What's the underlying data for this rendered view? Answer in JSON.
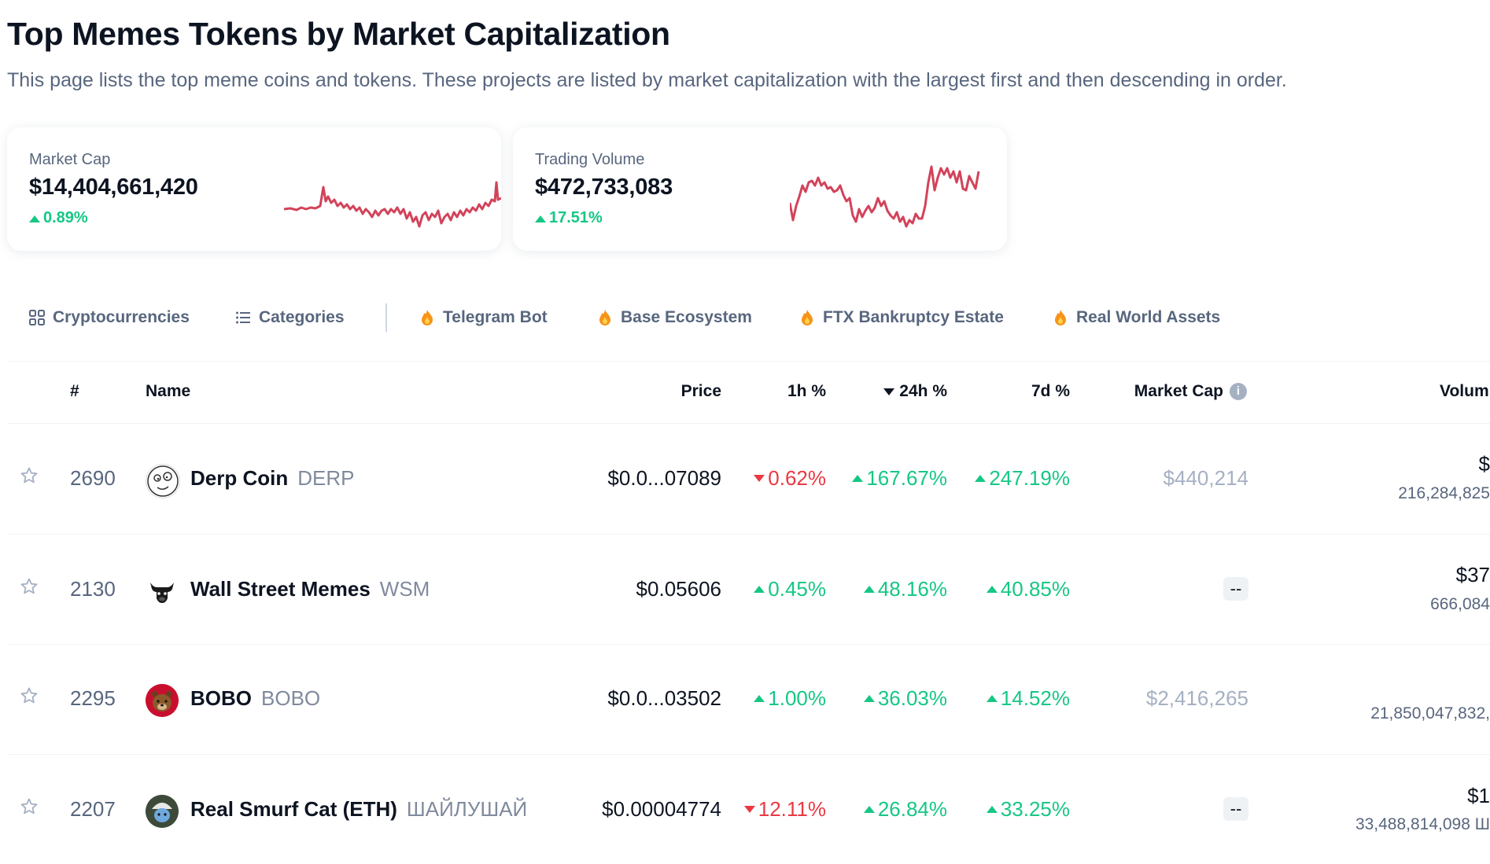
{
  "page": {
    "title": "Top Memes Tokens by Market Capitalization",
    "subtitle": "This page lists the top meme coins and tokens. These projects are listed by market capitalization with the largest first and then descending in order."
  },
  "cards": [
    {
      "label": "Market Cap",
      "value": "$14,404,661,420",
      "change": "0.89%",
      "direction": "up",
      "spark_color": "#d2435a"
    },
    {
      "label": "Trading Volume",
      "value": "$472,733,083",
      "change": "17.51%",
      "direction": "up",
      "spark_color": "#d2435a"
    }
  ],
  "tabs": [
    {
      "label": "Cryptocurrencies",
      "icon": "grid-icon"
    },
    {
      "label": "Categories",
      "icon": "list-icon"
    },
    {
      "label": "Telegram Bot",
      "icon": "fire-icon"
    },
    {
      "label": "Base Ecosystem",
      "icon": "fire-icon"
    },
    {
      "label": "FTX Bankruptcy Estate",
      "icon": "fire-icon"
    },
    {
      "label": "Real World Assets",
      "icon": "fire-icon"
    }
  ],
  "table": {
    "headers": {
      "rank": "#",
      "name": "Name",
      "price": "Price",
      "h1": "1h %",
      "h24": "24h %",
      "d7": "7d %",
      "mcap": "Market Cap",
      "volume": "Volum"
    },
    "rows": [
      {
        "rank": "2690",
        "name": "Derp Coin",
        "symbol": "DERP",
        "price": "$0.0...07089",
        "h1": "0.62%",
        "h1_dir": "down",
        "h24": "167.67%",
        "h24_dir": "up",
        "d7": "247.19%",
        "d7_dir": "up",
        "mcap": "$440,214",
        "vol1": "$",
        "vol2": "216,284,825"
      },
      {
        "rank": "2130",
        "name": "Wall Street Memes",
        "symbol": "WSM",
        "price": "$0.05606",
        "h1": "0.45%",
        "h1_dir": "up",
        "h24": "48.16%",
        "h24_dir": "up",
        "d7": "40.85%",
        "d7_dir": "up",
        "mcap": "--",
        "vol1": "$37",
        "vol2": "666,084"
      },
      {
        "rank": "2295",
        "name": "BOBO",
        "symbol": "BOBO",
        "price": "$0.0...03502",
        "h1": "1.00%",
        "h1_dir": "up",
        "h24": "36.03%",
        "h24_dir": "up",
        "d7": "14.52%",
        "d7_dir": "up",
        "mcap": "$2,416,265",
        "vol1": "",
        "vol2": "21,850,047,832,"
      },
      {
        "rank": "2207",
        "name": "Real Smurf Cat (ETH)",
        "symbol": "ШАЙЛУШАЙ",
        "price": "$0.00004774",
        "h1": "12.11%",
        "h1_dir": "down",
        "h24": "26.84%",
        "h24_dir": "up",
        "d7": "33.25%",
        "d7_dir": "up",
        "mcap": "--",
        "vol1": "$1",
        "vol2": "33,488,814,098 Ш"
      }
    ]
  }
}
